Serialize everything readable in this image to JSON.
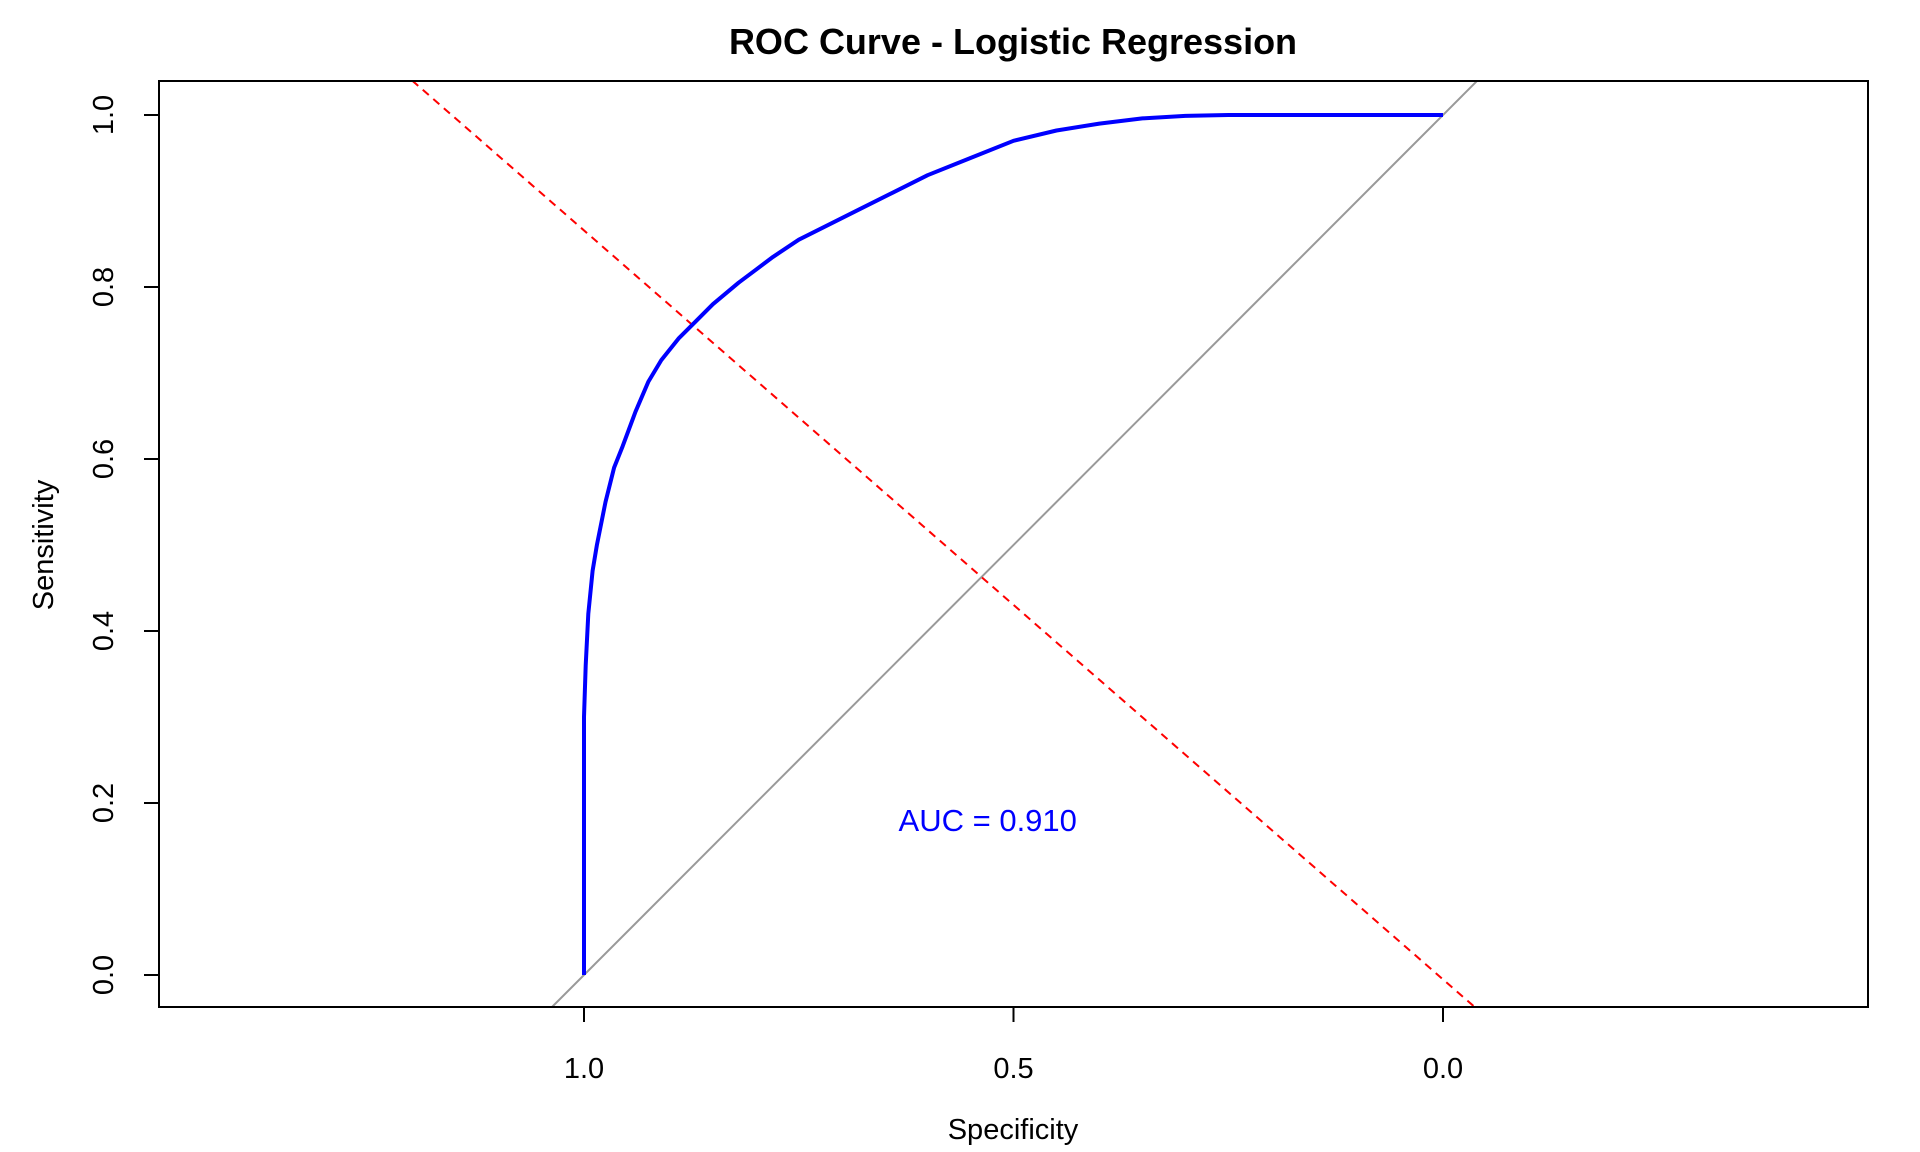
{
  "chart_data": {
    "type": "line",
    "title": "ROC Curve - Logistic Regression",
    "xlabel": "Specificity",
    "ylabel": "Sensitivity",
    "x_reversed": true,
    "xlim": [
      1.0,
      0.0
    ],
    "ylim": [
      0.0,
      1.0
    ],
    "x_ticks": [
      "1.0",
      "0.5",
      "0.0"
    ],
    "x_tick_values": [
      1.0,
      0.5,
      0.0
    ],
    "y_ticks": [
      "0.0",
      "0.2",
      "0.4",
      "0.6",
      "0.8",
      "1.0"
    ],
    "y_tick_values": [
      0.0,
      0.2,
      0.4,
      0.6,
      0.8,
      1.0
    ],
    "grid": false,
    "series": [
      {
        "color": "#0000ff",
        "style": "solid",
        "x": [
          1.0,
          1.0,
          1.0,
          0.998,
          0.995,
          0.99,
          0.985,
          0.975,
          0.965,
          0.955,
          0.94,
          0.925,
          0.91,
          0.89,
          0.87,
          0.85,
          0.82,
          0.8,
          0.78,
          0.75,
          0.72,
          0.68,
          0.64,
          0.6,
          0.55,
          0.5,
          0.45,
          0.4,
          0.35,
          0.3,
          0.25,
          0.2,
          0.1,
          0.0
        ],
        "y": [
          0.0,
          0.2,
          0.3,
          0.36,
          0.42,
          0.47,
          0.5,
          0.55,
          0.59,
          0.615,
          0.655,
          0.69,
          0.715,
          0.74,
          0.76,
          0.78,
          0.805,
          0.82,
          0.835,
          0.855,
          0.87,
          0.89,
          0.91,
          0.93,
          0.95,
          0.97,
          0.982,
          0.99,
          0.996,
          0.999,
          1.0,
          1.0,
          1.0,
          1.0
        ]
      },
      {
        "color": "#999999",
        "style": "solid",
        "x": [
          1.04,
          -0.04
        ],
        "y": [
          -0.04,
          1.04
        ]
      },
      {
        "color": "#ff0000",
        "style": "dashed",
        "x": [
          1.2,
          -0.04
        ],
        "y": [
          1.04,
          -0.04
        ]
      }
    ],
    "annotations": [
      {
        "text": "AUC = 0.910",
        "x": 0.53,
        "y": 0.18,
        "color": "#0000ff"
      }
    ]
  }
}
